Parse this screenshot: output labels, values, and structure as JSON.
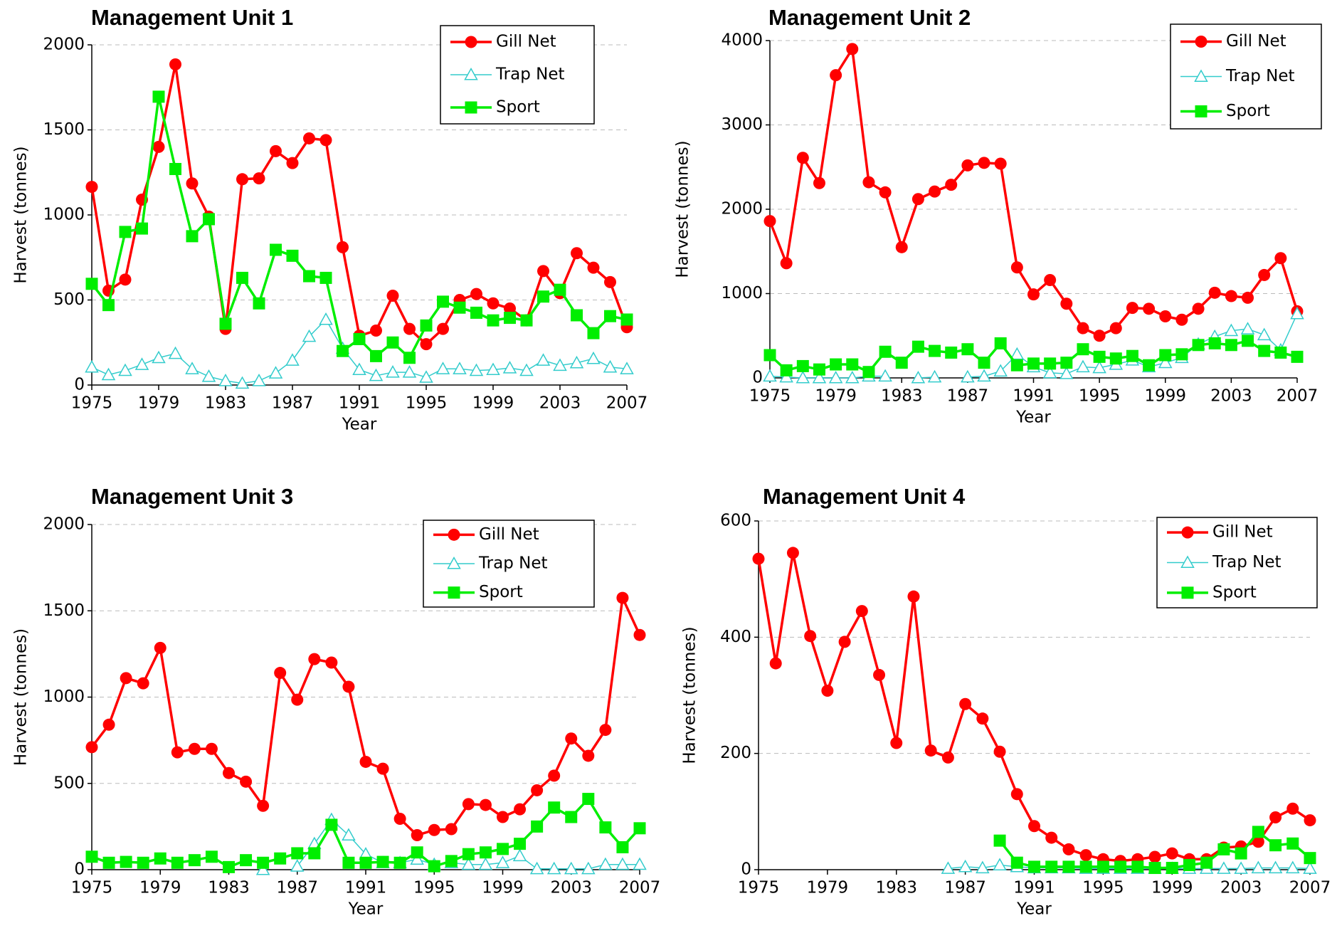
{
  "chart_data": [
    {
      "type": "line",
      "title": "Management Unit 1",
      "xlabel": "Year",
      "ylabel": "Harvest (tonnes)",
      "x": [
        1975,
        1976,
        1977,
        1978,
        1979,
        1980,
        1981,
        1982,
        1983,
        1984,
        1985,
        1986,
        1987,
        1988,
        1989,
        1990,
        1991,
        1992,
        1993,
        1994,
        1995,
        1996,
        1997,
        1998,
        1999,
        2000,
        2001,
        2002,
        2003,
        2004,
        2005,
        2006,
        2007
      ],
      "xlim": [
        1975,
        2007
      ],
      "xticks": [
        1975,
        1979,
        1983,
        1987,
        1991,
        1995,
        1999,
        2003,
        2007
      ],
      "ylim": [
        0,
        2000
      ],
      "yticks": [
        0,
        500,
        1000,
        1500,
        2000
      ],
      "grid": true,
      "legend": "upper right",
      "series": [
        {
          "name": "Gill Net",
          "color": "#ff0000",
          "marker": "circle",
          "values": [
            1165,
            555,
            620,
            1090,
            1400,
            1885,
            1185,
            990,
            330,
            1210,
            1215,
            1375,
            1305,
            1450,
            1440,
            810,
            290,
            320,
            525,
            330,
            240,
            330,
            500,
            535,
            480,
            450,
            380,
            670,
            540,
            775,
            690,
            605,
            340
          ]
        },
        {
          "name": "Trap Net",
          "color": "#33cccc",
          "marker": "triangle",
          "values": [
            105,
            60,
            85,
            120,
            160,
            185,
            95,
            50,
            25,
            10,
            25,
            70,
            145,
            285,
            385,
            215,
            90,
            55,
            75,
            75,
            45,
            95,
            95,
            85,
            90,
            100,
            85,
            145,
            115,
            130,
            155,
            105,
            95
          ]
        },
        {
          "name": "Sport",
          "color": "#00ee00",
          "marker": "square",
          "values": [
            595,
            470,
            900,
            920,
            1695,
            1270,
            875,
            975,
            360,
            630,
            480,
            795,
            760,
            640,
            630,
            200,
            270,
            170,
            250,
            160,
            350,
            490,
            455,
            425,
            380,
            395,
            380,
            520,
            560,
            410,
            305,
            405,
            385
          ]
        }
      ]
    },
    {
      "type": "line",
      "title": "Management Unit 2",
      "xlabel": "Year",
      "ylabel": "Harvest (tonnes)",
      "x": [
        1975,
        1976,
        1977,
        1978,
        1979,
        1980,
        1981,
        1982,
        1983,
        1984,
        1985,
        1986,
        1987,
        1988,
        1989,
        1990,
        1991,
        1992,
        1993,
        1994,
        1995,
        1996,
        1997,
        1998,
        1999,
        2000,
        2001,
        2002,
        2003,
        2004,
        2005,
        2006,
        2007
      ],
      "xlim": [
        1975,
        2007
      ],
      "xticks": [
        1975,
        1979,
        1983,
        1987,
        1991,
        1995,
        1999,
        2003,
        2007
      ],
      "ylim": [
        0,
        4000
      ],
      "yticks": [
        0,
        1000,
        2000,
        3000,
        4000
      ],
      "grid": true,
      "legend": "upper right",
      "series": [
        {
          "name": "Gill Net",
          "color": "#ff0000",
          "marker": "circle",
          "values": [
            1860,
            1360,
            2610,
            2310,
            3590,
            3900,
            2320,
            2200,
            1550,
            2120,
            2210,
            2290,
            2520,
            2550,
            2540,
            1310,
            990,
            1160,
            880,
            590,
            500,
            590,
            830,
            820,
            730,
            690,
            820,
            1010,
            970,
            950,
            1220,
            1420,
            790
          ]
        },
        {
          "name": "Trap Net",
          "color": "#33cccc",
          "marker": "triangle",
          "values": [
            20,
            10,
            0,
            0,
            0,
            0,
            20,
            20,
            null,
            0,
            10,
            null,
            10,
            20,
            80,
            280,
            130,
            60,
            50,
            130,
            120,
            160,
            210,
            130,
            180,
            240,
            400,
            490,
            560,
            580,
            510,
            330,
            760
          ]
        },
        {
          "name": "Sport",
          "color": "#00ee00",
          "marker": "square",
          "values": [
            270,
            90,
            140,
            100,
            160,
            160,
            70,
            310,
            180,
            370,
            320,
            300,
            340,
            180,
            410,
            150,
            170,
            170,
            180,
            340,
            250,
            230,
            260,
            150,
            270,
            280,
            390,
            410,
            390,
            440,
            320,
            300,
            250
          ]
        }
      ]
    },
    {
      "type": "line",
      "title": "Management Unit 3",
      "xlabel": "Year",
      "ylabel": "Harvest (tonnes)",
      "x": [
        1975,
        1976,
        1977,
        1978,
        1979,
        1980,
        1981,
        1982,
        1983,
        1984,
        1985,
        1986,
        1987,
        1988,
        1989,
        1990,
        1991,
        1992,
        1993,
        1994,
        1995,
        1996,
        1997,
        1998,
        1999,
        2000,
        2001,
        2002,
        2003,
        2004,
        2005,
        2006,
        2007
      ],
      "xlim": [
        1975,
        2007
      ],
      "xticks": [
        1975,
        1979,
        1983,
        1987,
        1991,
        1995,
        1999,
        2003,
        2007
      ],
      "ylim": [
        0,
        2000
      ],
      "yticks": [
        0,
        500,
        1000,
        1500,
        2000
      ],
      "grid": true,
      "legend": "upper right",
      "series": [
        {
          "name": "Gill Net",
          "color": "#ff0000",
          "marker": "circle",
          "values": [
            710,
            840,
            1110,
            1080,
            1285,
            680,
            700,
            700,
            560,
            510,
            370,
            1140,
            985,
            1220,
            1200,
            1060,
            625,
            585,
            295,
            200,
            230,
            235,
            380,
            375,
            305,
            350,
            460,
            545,
            760,
            660,
            810,
            1575,
            1360
          ]
        },
        {
          "name": "Trap Net",
          "color": "#33cccc",
          "marker": "triangle",
          "values": [
            null,
            null,
            null,
            null,
            null,
            null,
            null,
            null,
            null,
            null,
            0,
            null,
            20,
            150,
            290,
            200,
            90,
            40,
            40,
            60,
            30,
            40,
            30,
            30,
            40,
            80,
            5,
            5,
            5,
            5,
            30,
            30,
            30
          ]
        },
        {
          "name": "Sport",
          "color": "#00ee00",
          "marker": "square",
          "values": [
            75,
            40,
            45,
            40,
            65,
            40,
            55,
            75,
            15,
            55,
            40,
            65,
            95,
            95,
            260,
            40,
            40,
            45,
            40,
            100,
            20,
            50,
            90,
            100,
            120,
            150,
            250,
            360,
            305,
            410,
            245,
            130,
            240
          ]
        }
      ]
    },
    {
      "type": "line",
      "title": "Management Unit 4",
      "xlabel": "Year",
      "ylabel": "Harvest (tonnes)",
      "x": [
        1975,
        1976,
        1977,
        1978,
        1979,
        1980,
        1981,
        1982,
        1983,
        1984,
        1985,
        1986,
        1987,
        1988,
        1989,
        1990,
        1991,
        1992,
        1993,
        1994,
        1995,
        1996,
        1997,
        1998,
        1999,
        2000,
        2001,
        2002,
        2003,
        2004,
        2005,
        2006,
        2007
      ],
      "xlim": [
        1975,
        2007
      ],
      "xticks": [
        1975,
        1979,
        1983,
        1987,
        1991,
        1995,
        1999,
        2003,
        2007
      ],
      "ylim": [
        0,
        600
      ],
      "yticks": [
        0,
        200,
        400,
        600
      ],
      "grid": true,
      "legend": "upper right",
      "series": [
        {
          "name": "Gill Net",
          "color": "#ff0000",
          "marker": "circle",
          "values": [
            535,
            355,
            545,
            402,
            308,
            392,
            445,
            335,
            218,
            470,
            205,
            193,
            285,
            260,
            203,
            130,
            75,
            55,
            35,
            25,
            18,
            15,
            18,
            22,
            28,
            18,
            18,
            38,
            40,
            48,
            90,
            105,
            85
          ]
        },
        {
          "name": "Trap Net",
          "color": "#33cccc",
          "marker": "triangle",
          "values": [
            null,
            null,
            null,
            null,
            null,
            null,
            null,
            null,
            null,
            null,
            null,
            2,
            5,
            3,
            8,
            5,
            3,
            3,
            3,
            2,
            2,
            2,
            2,
            2,
            2,
            2,
            2,
            2,
            2,
            3,
            3,
            3,
            2
          ]
        },
        {
          "name": "Sport",
          "color": "#00ee00",
          "marker": "square",
          "values": [
            null,
            null,
            null,
            null,
            null,
            null,
            null,
            null,
            null,
            null,
            null,
            null,
            null,
            null,
            50,
            12,
            5,
            5,
            5,
            5,
            5,
            5,
            5,
            3,
            3,
            8,
            12,
            35,
            28,
            65,
            42,
            45,
            20
          ]
        }
      ]
    }
  ]
}
